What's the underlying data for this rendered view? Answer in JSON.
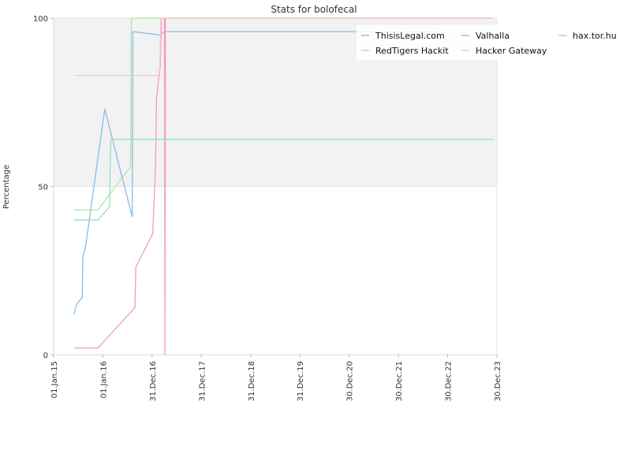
{
  "chart_data": {
    "type": "line",
    "title": "Stats for bolofecal",
    "xlabel": "",
    "ylabel": "Percentage",
    "xlim": [
      "2015-01-01",
      "2023-12-30"
    ],
    "ylim": [
      0,
      100
    ],
    "yticks": [
      0,
      50,
      100
    ],
    "xticks": [
      {
        "date": "2015-01-01",
        "label": "01.Jan.15"
      },
      {
        "date": "2016-01-01",
        "label": "01.Jan.16"
      },
      {
        "date": "2016-12-31",
        "label": "31.Dec.16"
      },
      {
        "date": "2017-12-31",
        "label": "31.Dec.17"
      },
      {
        "date": "2018-12-31",
        "label": "31.Dec.18"
      },
      {
        "date": "2019-12-31",
        "label": "31.Dec.19"
      },
      {
        "date": "2020-12-30",
        "label": "30.Dec.20"
      },
      {
        "date": "2021-12-30",
        "label": "30.Dec.21"
      },
      {
        "date": "2022-12-30",
        "label": "30.Dec.22"
      },
      {
        "date": "2023-12-30",
        "label": "30.Dec.23"
      }
    ],
    "grid": true,
    "shaded_band": [
      50,
      100
    ],
    "legend_position": "top-right",
    "series": [
      {
        "name": "ThisisLegal.com",
        "color": "#88bbe8",
        "points": [
          [
            "2015-06-01",
            12
          ],
          [
            "2015-06-20",
            15
          ],
          [
            "2015-08-01",
            17
          ],
          [
            "2015-08-05",
            29
          ],
          [
            "2015-08-25",
            32
          ],
          [
            "2016-01-15",
            73
          ],
          [
            "2016-08-05",
            41
          ],
          [
            "2016-08-10",
            96
          ],
          [
            "2017-03-01",
            95
          ],
          [
            "2017-04-01",
            96
          ],
          [
            "2022-10-15",
            96
          ]
        ]
      },
      {
        "name": "Valhalla",
        "color": "#f29ac0",
        "points": [
          [
            "2015-06-01",
            2
          ],
          [
            "2015-11-25",
            2
          ],
          [
            "2016-08-25",
            14
          ],
          [
            "2016-09-01",
            26
          ],
          [
            "2017-01-05",
            36
          ],
          [
            "2017-01-25",
            56
          ],
          [
            "2017-02-01",
            76
          ],
          [
            "2017-02-25",
            85
          ],
          [
            "2017-03-01",
            85
          ],
          [
            "2017-03-10",
            100
          ],
          [
            "2017-04-01",
            100
          ],
          [
            "2017-04-05",
            0
          ],
          [
            "2017-04-08",
            100
          ],
          [
            "2023-12-01",
            100
          ]
        ]
      },
      {
        "name": "hax.tor.hu",
        "color": "#8fe3c7",
        "points": [
          [
            "2015-06-01",
            40
          ],
          [
            "2015-11-25",
            40
          ],
          [
            "2016-02-20",
            44
          ],
          [
            "2016-02-25",
            60
          ],
          [
            "2016-03-01",
            64
          ],
          [
            "2023-12-01",
            64
          ]
        ]
      },
      {
        "name": "RedTigers Hackit",
        "color": "#a7e8a7",
        "points": [
          [
            "2015-06-01",
            43
          ],
          [
            "2015-11-25",
            43
          ],
          [
            "2016-07-25",
            56
          ],
          [
            "2016-07-30",
            100
          ],
          [
            "2023-12-01",
            100
          ]
        ]
      },
      {
        "name": "Hacker Gateway",
        "color": "#f4c7cc",
        "points": [
          [
            "2015-06-01",
            83
          ],
          [
            "2017-02-25",
            83
          ],
          [
            "2017-03-05",
            100
          ],
          [
            "2023-12-01",
            100
          ]
        ]
      }
    ]
  }
}
